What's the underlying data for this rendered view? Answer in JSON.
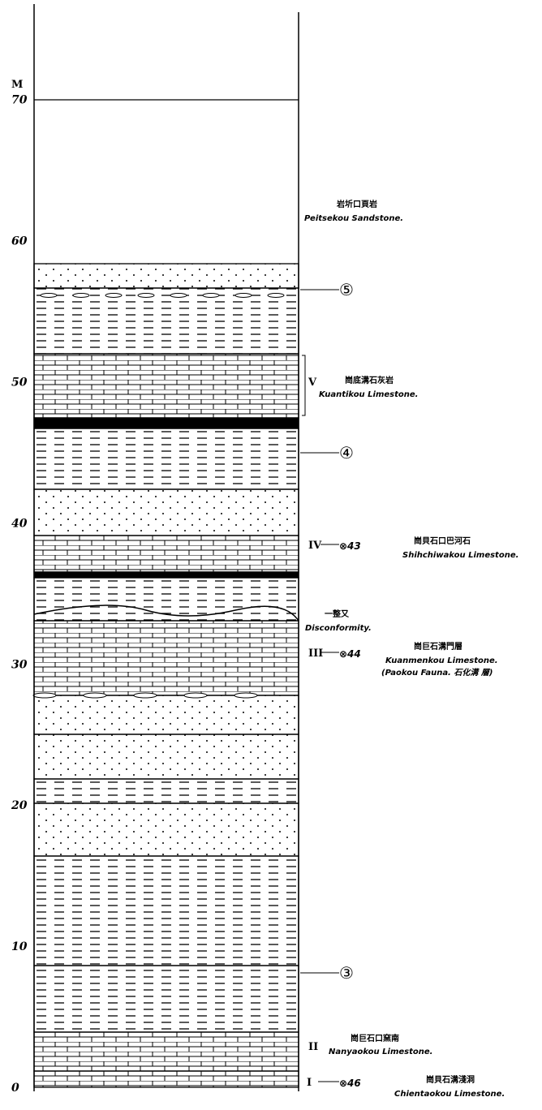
{
  "axis": {
    "unit": "M",
    "ticks": [
      0,
      10,
      20,
      30,
      40,
      50,
      60,
      70
    ]
  },
  "formations": [
    {
      "chinese": "岩圻口頁岩",
      "name": "Peitsekou Sandstone."
    },
    {
      "roman": "V",
      "chinese": "崗底溝石灰岩",
      "name": "Kuantikou Limestone."
    },
    {
      "roman": "IV",
      "sample": "⊗43",
      "chinese": "崗貝石口巴河石",
      "name": "Shihchiwakou Limestone."
    },
    {
      "chinese": "一整又",
      "name": "Disconformity."
    },
    {
      "roman": "III",
      "sample": "⊗44",
      "chinese": "崗巨石溝門層",
      "name": "Kuanmenkou Limestone.",
      "note": "(Paokou Fauna. 石化溝 層)"
    },
    {
      "roman": "II",
      "chinese": "崗巨石口窯南",
      "name": "Nanyaokou Limestone."
    },
    {
      "roman": "I",
      "sample": "⊗46",
      "chinese": "崗貝石溝淺洞",
      "name": "Chientaokou Limestone."
    }
  ],
  "markers": [
    "⑤",
    "④",
    "③"
  ]
}
